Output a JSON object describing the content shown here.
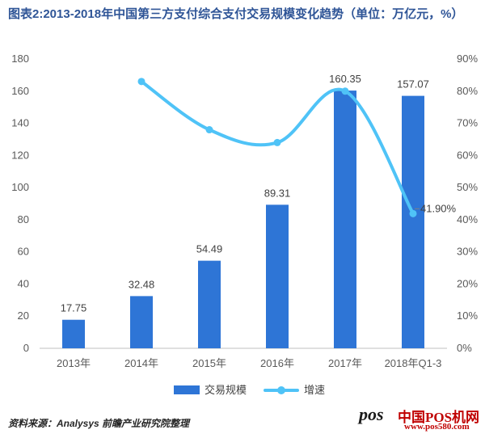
{
  "chart_data": {
    "type": "bar+line",
    "title": "图表2:2013-2018年中国第三方支付综合支付交易规模变化趋势（单位：万亿元，%）",
    "categories": [
      "2013年",
      "2014年",
      "2015年",
      "2016年",
      "2017年",
      "2018年Q1-3"
    ],
    "series": [
      {
        "name": "交易规模",
        "type": "bar",
        "axis": "left",
        "values": [
          17.75,
          32.48,
          54.49,
          89.31,
          160.35,
          157.07
        ],
        "labels": [
          "17.75",
          "32.48",
          "54.49",
          "89.31",
          "160.35",
          "157.07"
        ],
        "color": "#2e75d6"
      },
      {
        "name": "增速",
        "type": "line",
        "axis": "right",
        "values": [
          null,
          83,
          68,
          64,
          80,
          41.9
        ],
        "point_labels": [
          null,
          null,
          null,
          null,
          null,
          "41.90%"
        ],
        "color": "#4fc3f7"
      }
    ],
    "y_left": {
      "min": 0,
      "max": 180,
      "ticks": [
        "0",
        "20",
        "40",
        "60",
        "80",
        "100",
        "120",
        "140",
        "160",
        "180"
      ]
    },
    "y_right": {
      "min": 0,
      "max": 90,
      "ticks": [
        "0%",
        "10%",
        "20%",
        "30%",
        "40%",
        "50%",
        "60%",
        "70%",
        "80%",
        "90%"
      ]
    },
    "grid": false,
    "legend_position": "bottom"
  },
  "footer": {
    "source": "资料来源：Analysys  前瞻产业研究院整理",
    "watermark_logo": "pos",
    "watermark_brand": "中国POS机网",
    "watermark_url": "www.pos580.com"
  }
}
